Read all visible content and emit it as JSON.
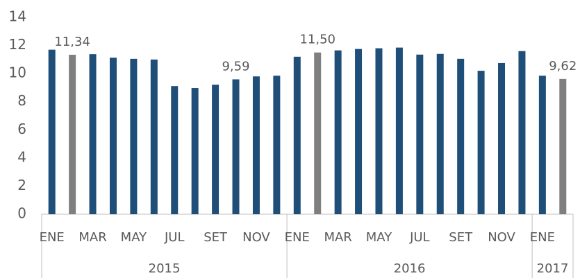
{
  "chart_data": {
    "type": "bar",
    "ylim": [
      0,
      14
    ],
    "yticks": [
      0,
      2,
      4,
      6,
      8,
      10,
      12,
      14
    ],
    "groups": [
      {
        "name": "2015",
        "categories": [
          "ENE",
          null,
          "MAR",
          null,
          "MAY",
          null,
          "JUL",
          null,
          "SET",
          null,
          "NOV",
          null
        ],
        "values": [
          11.7,
          11.34,
          11.38,
          11.13,
          11.05,
          11.0,
          9.11,
          8.97,
          9.21,
          9.59,
          9.8,
          9.85
        ],
        "value_labels": [
          null,
          "11,34",
          null,
          null,
          null,
          null,
          null,
          null,
          null,
          "9,59",
          null,
          null
        ],
        "colors": [
          "#1f4e79",
          "#7f7f7f",
          "#1f4e79",
          "#1f4e79",
          "#1f4e79",
          "#1f4e79",
          "#1f4e79",
          "#1f4e79",
          "#1f4e79",
          "#1f4e79",
          "#1f4e79",
          "#1f4e79"
        ]
      },
      {
        "name": "2016",
        "categories": [
          "ENE",
          null,
          "MAR",
          null,
          "MAY",
          null,
          "JUL",
          null,
          "SET",
          null,
          "NOV",
          null
        ],
        "values": [
          11.2,
          11.5,
          11.65,
          11.75,
          11.8,
          11.85,
          11.35,
          11.4,
          11.05,
          10.2,
          10.75,
          11.6
        ],
        "value_labels": [
          null,
          "11,50",
          null,
          null,
          null,
          null,
          null,
          null,
          null,
          null,
          null,
          null
        ],
        "colors": [
          "#1f4e79",
          "#7f7f7f",
          "#1f4e79",
          "#1f4e79",
          "#1f4e79",
          "#1f4e79",
          "#1f4e79",
          "#1f4e79",
          "#1f4e79",
          "#1f4e79",
          "#1f4e79",
          "#1f4e79"
        ]
      },
      {
        "name": "2017",
        "categories": [
          "ENE",
          null
        ],
        "values": [
          9.85,
          9.62
        ],
        "value_labels": [
          null,
          "9,62"
        ],
        "colors": [
          "#1f4e79",
          "#7f7f7f"
        ]
      }
    ]
  }
}
